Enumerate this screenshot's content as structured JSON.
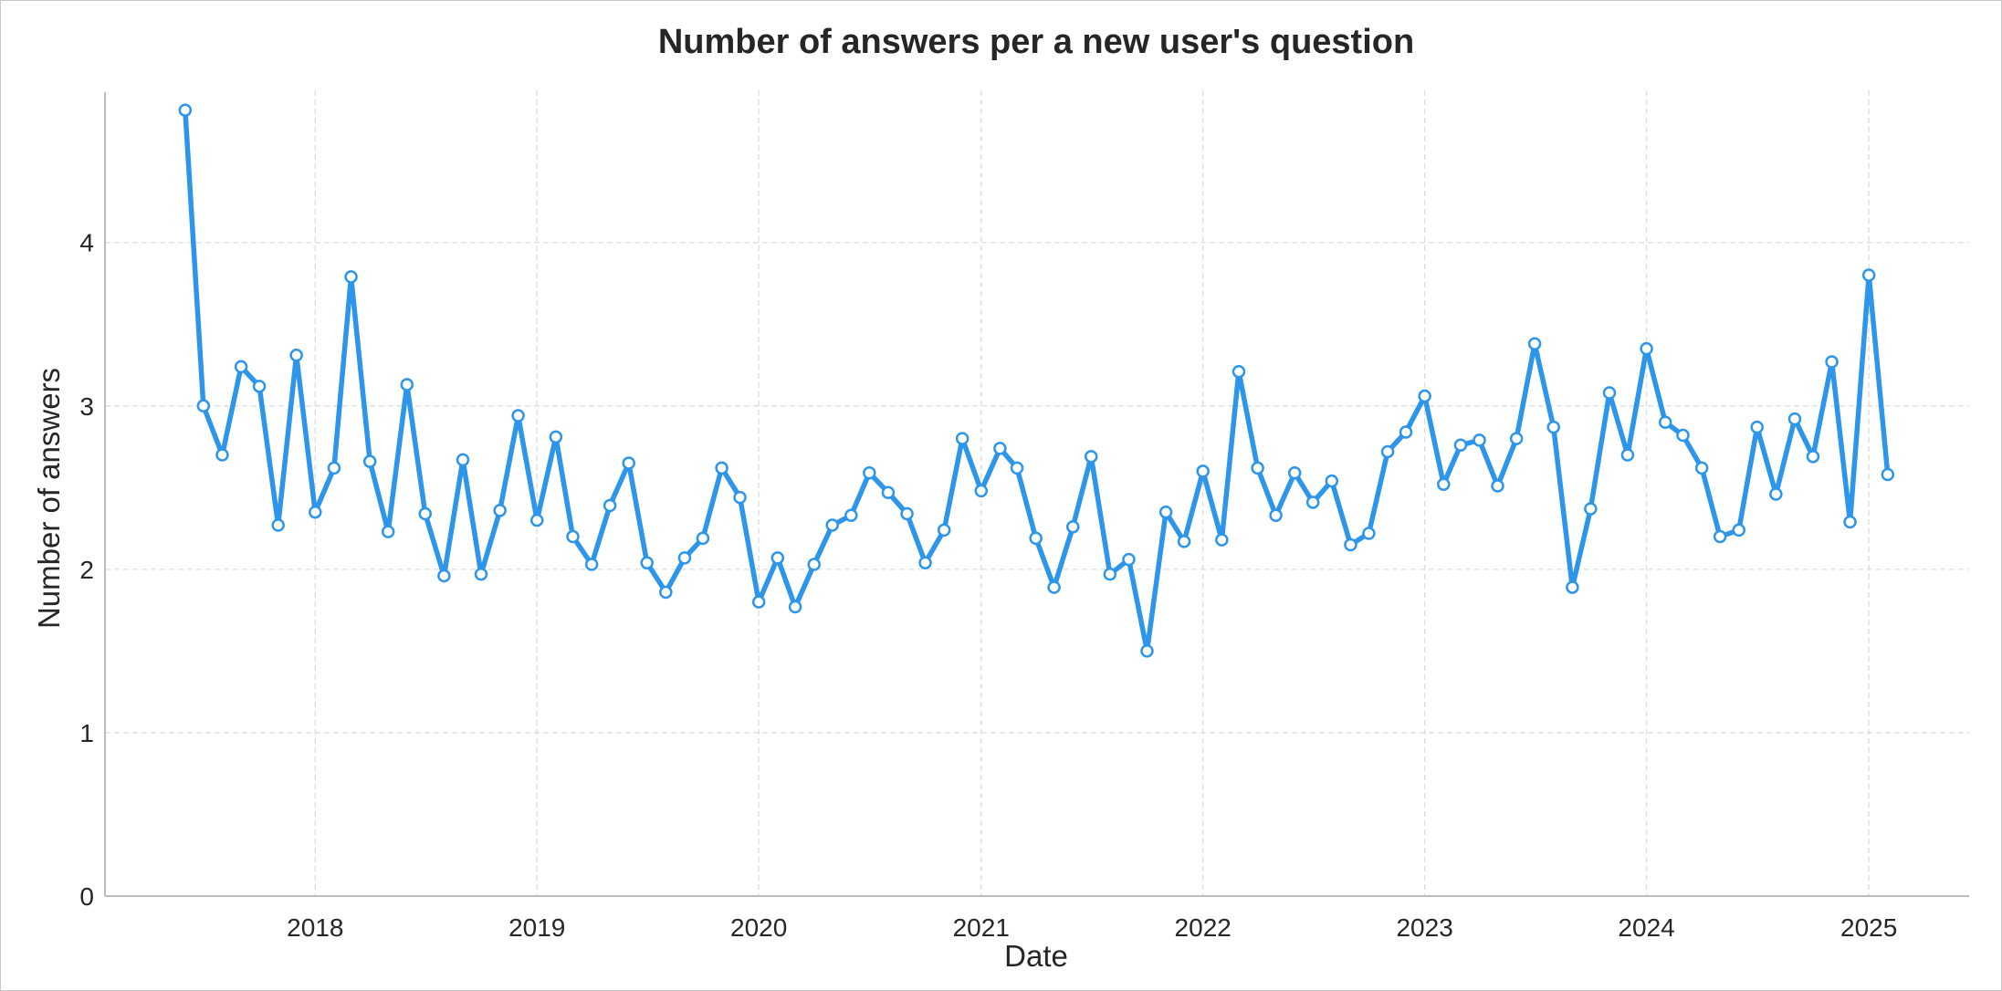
{
  "chart_data": {
    "type": "line",
    "title": "Number of answers per a new user's question",
    "xlabel": "Date",
    "ylabel": "Number of answers",
    "x_tick_labels": [
      "2018",
      "2019",
      "2020",
      "2021",
      "2022",
      "2023",
      "2024",
      "2025"
    ],
    "y_tick_labels": [
      "0",
      "1",
      "2",
      "3",
      "4"
    ],
    "ylim": [
      0,
      4.92
    ],
    "xlim": [
      "2017-01-20",
      "2025-06-15"
    ],
    "grid": true,
    "legend": "none",
    "series": [
      {
        "color": "#2e96ea",
        "marker": "circle",
        "x": [
          "2017-06-01",
          "2017-07-01",
          "2017-08-01",
          "2017-09-01",
          "2017-10-01",
          "2017-11-01",
          "2017-12-01",
          "2018-01-01",
          "2018-02-01",
          "2018-03-01",
          "2018-04-01",
          "2018-05-01",
          "2018-06-01",
          "2018-07-01",
          "2018-08-01",
          "2018-09-01",
          "2018-10-01",
          "2018-11-01",
          "2018-12-01",
          "2019-01-01",
          "2019-02-01",
          "2019-03-01",
          "2019-04-01",
          "2019-05-01",
          "2019-06-01",
          "2019-07-01",
          "2019-08-01",
          "2019-09-01",
          "2019-10-01",
          "2019-11-01",
          "2019-12-01",
          "2020-01-01",
          "2020-02-01",
          "2020-03-01",
          "2020-04-01",
          "2020-05-01",
          "2020-06-01",
          "2020-07-01",
          "2020-08-01",
          "2020-09-01",
          "2020-10-01",
          "2020-11-01",
          "2020-12-01",
          "2021-01-01",
          "2021-02-01",
          "2021-03-01",
          "2021-04-01",
          "2021-05-01",
          "2021-06-01",
          "2021-07-01",
          "2021-08-01",
          "2021-09-01",
          "2021-10-01",
          "2021-11-01",
          "2021-12-01",
          "2022-01-01",
          "2022-02-01",
          "2022-03-01",
          "2022-04-01",
          "2022-05-01",
          "2022-06-01",
          "2022-07-01",
          "2022-08-01",
          "2022-09-01",
          "2022-10-01",
          "2022-11-01",
          "2022-12-01",
          "2023-01-01",
          "2023-02-01",
          "2023-03-01",
          "2023-04-01",
          "2023-05-01",
          "2023-06-01",
          "2023-07-01",
          "2023-08-01",
          "2023-09-01",
          "2023-10-01",
          "2023-11-01",
          "2023-12-01",
          "2024-01-01",
          "2024-02-01",
          "2024-03-01",
          "2024-04-01",
          "2024-05-01",
          "2024-06-01",
          "2024-07-01",
          "2024-08-01",
          "2024-09-01",
          "2024-10-01",
          "2024-11-01",
          "2024-12-01",
          "2025-01-01",
          "2025-02-01"
        ],
        "values": [
          4.81,
          3.0,
          2.7,
          3.24,
          3.12,
          2.27,
          3.31,
          2.35,
          2.62,
          3.79,
          2.66,
          2.23,
          3.13,
          2.34,
          1.96,
          2.67,
          1.97,
          2.36,
          2.94,
          2.3,
          2.81,
          2.2,
          2.03,
          2.39,
          2.65,
          2.04,
          1.86,
          2.07,
          2.19,
          2.62,
          2.44,
          1.8,
          2.07,
          1.77,
          2.03,
          2.27,
          2.33,
          2.59,
          2.47,
          2.34,
          2.04,
          2.24,
          2.8,
          2.48,
          2.74,
          2.62,
          2.19,
          1.89,
          2.26,
          2.69,
          1.97,
          2.06,
          1.5,
          2.35,
          2.17,
          2.6,
          2.18,
          3.21,
          2.62,
          2.33,
          2.59,
          2.41,
          2.54,
          2.15,
          2.22,
          2.72,
          2.84,
          3.06,
          2.52,
          2.76,
          2.79,
          2.51,
          2.8,
          3.38,
          2.87,
          1.89,
          2.37,
          3.08,
          2.7,
          3.35,
          2.9,
          2.82,
          2.62,
          2.2,
          2.24,
          2.87,
          2.46,
          2.92,
          2.69,
          3.27,
          2.29,
          3.8,
          2.58
        ]
      }
    ]
  }
}
